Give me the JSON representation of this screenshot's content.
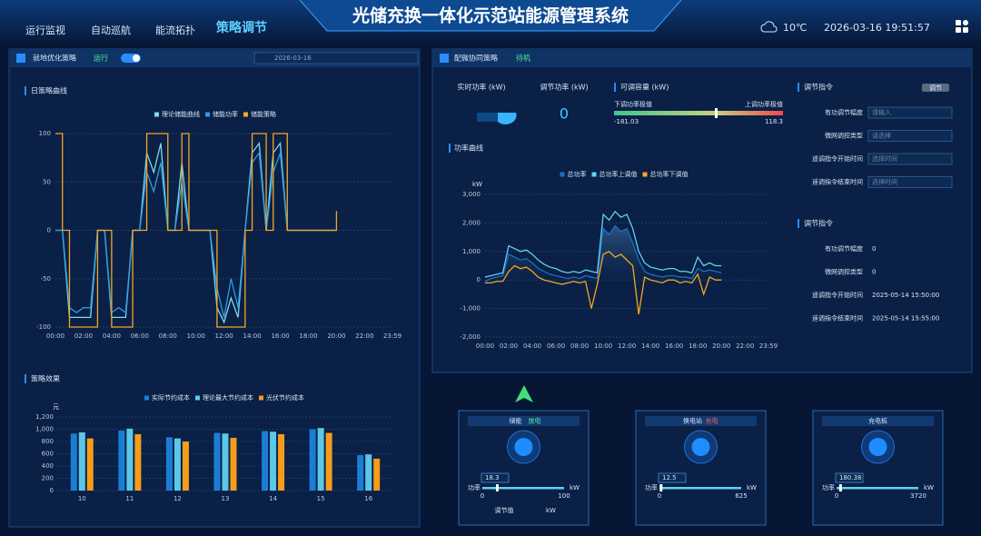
{
  "header": {
    "title": "光储充换一体化示范站能源管理系统",
    "nav": [
      "运行监视",
      "自动巡航",
      "能流拓扑",
      "策略调节"
    ],
    "weather": "10℃",
    "datetime": "2026-03-16 19:51:57"
  },
  "left_panel": {
    "title": "就地优化策略",
    "status": "运行",
    "date": "2026-03-16"
  },
  "right_panel": {
    "title": "配微协同策略",
    "status": "待机",
    "realtime_power_label": "实时功率 (kW)",
    "adjust_power_label": "调节功率 (kW)",
    "adjust_power_value": 0,
    "capacity_label": "可调容量 (kW)",
    "capacity_min_label": "下调功率极值",
    "capacity_max_label": "上调功率极值",
    "capacity_min": -181.03,
    "capacity_max": 118.3
  },
  "command_form": {
    "title": "调节指令",
    "button": "调节",
    "fields": [
      {
        "label": "有功调节幅度",
        "placeholder": "请输入"
      },
      {
        "label": "微网调控类型",
        "placeholder": "请选择"
      },
      {
        "label": "遥调指令开始时间",
        "placeholder": "选择时间"
      },
      {
        "label": "遥调指令结束时间",
        "placeholder": "选择时间"
      }
    ]
  },
  "command_info": {
    "title": "调节指令",
    "rows": [
      {
        "label": "有功调节幅度",
        "value": "0"
      },
      {
        "label": "微网调控类型",
        "value": "0"
      },
      {
        "label": "遥调指令开始时间",
        "value": "2025-05-14 15:50:00"
      },
      {
        "label": "遥调指令结束时间",
        "value": "2025-05-14 15:55:00"
      }
    ]
  },
  "charts": [
    {
      "type": "line",
      "title": "日策略曲线",
      "xlim": [
        0,
        23.98
      ],
      "xticks": [
        {
          "value": 0,
          "label": "00:00"
        },
        {
          "value": 2,
          "label": "02:00"
        },
        {
          "value": 4,
          "label": "04:00"
        },
        {
          "value": 6,
          "label": "06:00"
        },
        {
          "value": 8,
          "label": "08:00"
        },
        {
          "value": 10,
          "label": "10:00"
        },
        {
          "value": 12,
          "label": "12:00"
        },
        {
          "value": 14,
          "label": "14:00"
        },
        {
          "value": 16,
          "label": "16:00"
        },
        {
          "value": 18,
          "label": "18:00"
        },
        {
          "value": 20,
          "label": "20:00"
        },
        {
          "value": 22,
          "label": "22:00"
        },
        {
          "value": 23.98,
          "label": "23:59"
        }
      ],
      "ylim": [
        -100,
        100
      ],
      "yticks": [
        100,
        50,
        0,
        -50,
        -100
      ],
      "grid": true,
      "series": [
        {
          "name": "理论储能曲线",
          "color": "#7fd8f0",
          "step": false,
          "x": [
            0,
            0.5,
            1,
            1.5,
            2,
            2.5,
            3,
            3.5,
            4,
            4.5,
            5,
            5.5,
            6,
            6.5,
            7,
            7.5,
            8,
            8.5,
            9,
            9.5,
            10,
            10.5,
            11,
            11.5,
            12,
            12.5,
            13,
            13.5,
            14,
            14.5,
            15,
            15.5,
            16,
            16.5,
            17,
            17.5,
            18,
            18.5,
            19,
            19.5,
            20
          ],
          "values": [
            0,
            0,
            -90,
            -90,
            -90,
            -90,
            0,
            0,
            -90,
            -90,
            -90,
            0,
            0,
            80,
            60,
            90,
            0,
            0,
            70,
            0,
            0,
            0,
            0,
            -80,
            -95,
            -70,
            -90,
            0,
            80,
            90,
            0,
            80,
            90,
            0,
            0,
            0,
            0,
            0,
            0,
            0,
            0
          ]
        },
        {
          "name": "储能功率",
          "color": "#2f9be0",
          "step": false,
          "x": [
            0,
            0.5,
            1,
            1.5,
            2,
            2.5,
            3,
            3.5,
            4,
            4.5,
            5,
            5.5,
            6,
            6.5,
            7,
            7.5,
            8,
            8.5,
            9,
            9.5,
            10,
            10.5,
            11,
            11.5,
            12,
            12.5,
            13,
            13.5,
            14,
            14.5,
            15,
            15.5,
            16,
            16.5,
            17,
            17.5,
            18,
            18.5,
            19,
            19.5,
            20
          ],
          "values": [
            0,
            0,
            -80,
            -85,
            -80,
            -80,
            0,
            0,
            -85,
            -80,
            -85,
            0,
            0,
            60,
            40,
            70,
            0,
            0,
            50,
            0,
            0,
            0,
            0,
            -60,
            -90,
            -50,
            -80,
            0,
            70,
            80,
            0,
            60,
            80,
            0,
            0,
            0,
            0,
            0,
            0,
            0,
            0
          ]
        },
        {
          "name": "储能策略",
          "color": "#f5a623",
          "step": true,
          "x": [
            0,
            0.5,
            1,
            1.5,
            2,
            2.5,
            3,
            3.5,
            4,
            4.5,
            5,
            5.5,
            6,
            6.5,
            7,
            7.5,
            8,
            8.5,
            9,
            9.5,
            10,
            10.5,
            11,
            11.5,
            12,
            12.5,
            13,
            13.5,
            14,
            14.5,
            15,
            15.5,
            16,
            16.5,
            17,
            17.5,
            18,
            18.5,
            19,
            19.5,
            20
          ],
          "values": [
            100,
            0,
            -100,
            -100,
            -100,
            -100,
            0,
            0,
            -100,
            -100,
            -100,
            0,
            0,
            100,
            100,
            100,
            0,
            0,
            100,
            0,
            0,
            0,
            0,
            -100,
            -100,
            -100,
            -100,
            0,
            100,
            100,
            0,
            100,
            100,
            0,
            0,
            0,
            0,
            0,
            0,
            0,
            20
          ]
        }
      ]
    },
    {
      "type": "bar",
      "title": "策略效果",
      "y_unit": "元",
      "categories": [
        "10",
        "11",
        "12",
        "13",
        "14",
        "15",
        "16"
      ],
      "ylim": [
        0,
        1200
      ],
      "yticks": [
        0,
        200,
        400,
        600,
        800,
        {
          "value": 1000,
          "label": "1,000"
        },
        {
          "value": 1200,
          "label": "1,200"
        }
      ],
      "grid": true,
      "series": [
        {
          "name": "实际节约成本",
          "color": "#1a7fd4",
          "values": [
            930,
            980,
            870,
            940,
            970,
            1000,
            580
          ]
        },
        {
          "name": "理论最大节约成本",
          "color": "#5bc8e8",
          "values": [
            950,
            1010,
            850,
            930,
            960,
            1020,
            590
          ]
        },
        {
          "name": "光伏节约成本",
          "color": "#f59c1a",
          "values": [
            850,
            920,
            800,
            860,
            920,
            940,
            520
          ]
        }
      ]
    },
    {
      "type": "line",
      "title": "功率曲线",
      "y_unit": "kW",
      "xlim": [
        0,
        23.98
      ],
      "xticks": [
        {
          "value": 0,
          "label": "00:00"
        },
        {
          "value": 2,
          "label": "02:00"
        },
        {
          "value": 4,
          "label": "04:00"
        },
        {
          "value": 6,
          "label": "06:00"
        },
        {
          "value": 8,
          "label": "08:00"
        },
        {
          "value": 10,
          "label": "10:00"
        },
        {
          "value": 12,
          "label": "12:00"
        },
        {
          "value": 14,
          "label": "14:00"
        },
        {
          "value": 16,
          "label": "16:00"
        },
        {
          "value": 18,
          "label": "18:00"
        },
        {
          "value": 20,
          "label": "20:00"
        },
        {
          "value": 22,
          "label": "22:00"
        },
        {
          "value": 23.98,
          "label": "23:59"
        }
      ],
      "ylim": [
        -2000,
        3000
      ],
      "yticks": [
        {
          "value": 3000,
          "label": "3,000"
        },
        {
          "value": 2000,
          "label": "2,000"
        },
        {
          "value": 1000,
          "label": "1,000"
        },
        0,
        {
          "value": -1000,
          "label": "-1,000"
        },
        {
          "value": -2000,
          "label": "-2,000"
        }
      ],
      "grid": true,
      "series": [
        {
          "name": "总功率",
          "color": "#1a6fc0",
          "step": false,
          "area": true,
          "x": [
            0,
            0.5,
            1,
            1.5,
            2,
            2.5,
            3,
            3.5,
            4,
            4.5,
            5,
            5.5,
            6,
            6.5,
            7,
            7.5,
            8,
            8.5,
            9,
            9.5,
            10,
            10.5,
            11,
            11.5,
            12,
            12.5,
            13,
            13.5,
            14,
            14.5,
            15,
            15.5,
            16,
            16.5,
            17,
            17.5,
            18,
            18.5,
            19,
            19.5,
            20
          ],
          "values": [
            -50,
            50,
            100,
            150,
            900,
            800,
            700,
            750,
            600,
            400,
            300,
            200,
            150,
            100,
            50,
            100,
            50,
            150,
            100,
            50,
            1800,
            1600,
            1900,
            1700,
            1800,
            1300,
            700,
            300,
            200,
            150,
            100,
            150,
            150,
            100,
            100,
            50,
            400,
            300,
            350,
            300,
            250
          ]
        },
        {
          "name": "总功率上调值",
          "color": "#5fd3f0",
          "step": false,
          "area": false,
          "x": [
            0,
            0.5,
            1,
            1.5,
            2,
            2.5,
            3,
            3.5,
            4,
            4.5,
            5,
            5.5,
            6,
            6.5,
            7,
            7.5,
            8,
            8.5,
            9,
            9.5,
            10,
            10.5,
            11,
            11.5,
            12,
            12.5,
            13,
            13.5,
            14,
            14.5,
            15,
            15.5,
            16,
            16.5,
            17,
            17.5,
            18,
            18.5,
            19,
            19.5,
            20
          ],
          "values": [
            100,
            150,
            200,
            250,
            1200,
            1100,
            1000,
            1050,
            900,
            700,
            550,
            450,
            400,
            300,
            250,
            300,
            250,
            350,
            300,
            250,
            2300,
            2100,
            2400,
            2200,
            2300,
            1800,
            1000,
            600,
            450,
            400,
            350,
            400,
            400,
            300,
            300,
            250,
            800,
            500,
            600,
            500,
            500
          ]
        },
        {
          "name": "总功率下调值",
          "color": "#f5a623",
          "step": false,
          "area": false,
          "x": [
            0,
            0.5,
            1,
            1.5,
            2,
            2.5,
            3,
            3.5,
            4,
            4.5,
            5,
            5.5,
            6,
            6.5,
            7,
            7.5,
            8,
            8.5,
            9,
            9.5,
            10,
            10.5,
            11,
            11.5,
            12,
            12.5,
            13,
            13.5,
            14,
            14.5,
            15,
            15.5,
            16,
            16.5,
            17,
            17.5,
            18,
            18.5,
            19,
            19.5,
            20
          ],
          "values": [
            -100,
            -100,
            -50,
            -50,
            300,
            500,
            400,
            450,
            300,
            100,
            0,
            -50,
            -100,
            -150,
            -100,
            -50,
            -100,
            -50,
            -1000,
            -150,
            900,
            1000,
            800,
            900,
            700,
            500,
            -1200,
            100,
            0,
            -50,
            -100,
            0,
            0,
            -100,
            -50,
            -100,
            200,
            -500,
            100,
            0,
            0
          ]
        }
      ]
    }
  ],
  "cards": [
    {
      "title": "储能",
      "status": "放电",
      "power": 18.3,
      "power_label": "功率",
      "unit": "kW",
      "min": 0,
      "max": 100
    },
    {
      "title": "换电站",
      "status": "充电",
      "power": 12.5,
      "power_label": "功率",
      "unit": "kW",
      "min": 0,
      "max": 625
    },
    {
      "title": "充电桩",
      "power": 180.38,
      "power_label": "功率",
      "unit": "kW",
      "min": 0,
      "max": 3720
    }
  ],
  "adjust": {
    "label": "调节值",
    "unit": "kW"
  }
}
